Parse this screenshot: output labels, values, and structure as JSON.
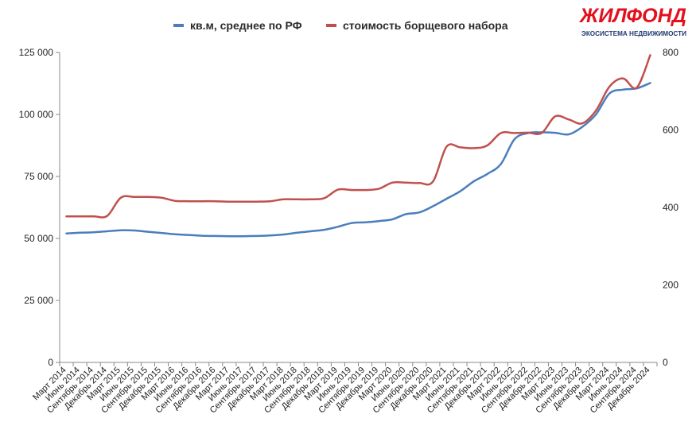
{
  "brand": {
    "name": "ЖИЛФОНД",
    "tagline": "ЭКОСИСТЕМА НЕДВИЖИМОСТИ"
  },
  "chart_data": {
    "type": "line",
    "title": "",
    "legend_position": "top-center",
    "grid": false,
    "categories": [
      "Март 2014",
      "Июнь 2014",
      "Сентябрь 2014",
      "Декабрь 2014",
      "Март 2015",
      "Июнь 2015",
      "Сентябрь 2015",
      "Декабрь 2015",
      "Март 2016",
      "Июнь 2016",
      "Сентябрь 2016",
      "Декабрь 2016",
      "Март 2017",
      "Июнь 2017",
      "Сентябрь 2017",
      "Декабрь 2017",
      "Март 2018",
      "Июнь 2018",
      "Сентябрь 2018",
      "Декабрь 2018",
      "Март 2019",
      "Июнь 2019",
      "Сентябрь 2019",
      "Декабрь 2019",
      "Март 2020",
      "Июнь 2020",
      "Сентябрь 2020",
      "Декабрь 2020",
      "Март 2021",
      "Июнь 2021",
      "Сентябрь 2021",
      "Декабрь 2021",
      "Март 2022",
      "Июнь 2022",
      "Сентябрь 2022",
      "Декабрь 2022",
      "Март 2023",
      "Июнь 2023",
      "Сентябрь 2023",
      "Декабрь 2023",
      "Март 2024",
      "Июнь 2024",
      "Сентябрь 2024",
      "Декабрь 2024"
    ],
    "y_left": {
      "ticks": [
        "0",
        "25 000",
        "50 000",
        "75 000",
        "100 000",
        "125 000"
      ],
      "min": 0,
      "max": 125000
    },
    "y_right": {
      "ticks": [
        "0",
        "200",
        "400",
        "600",
        "800"
      ],
      "min": 0,
      "max": 800
    },
    "series": [
      {
        "name": "кв.м, среднее по РФ",
        "axis": "left",
        "color": "#4a7ebb",
        "values": [
          52000,
          52300,
          52500,
          52900,
          53300,
          53200,
          52700,
          52200,
          51700,
          51400,
          51100,
          51000,
          50900,
          50900,
          51000,
          51200,
          51600,
          52300,
          52900,
          53500,
          54700,
          56200,
          56500,
          57000,
          57700,
          59800,
          60500,
          63000,
          66000,
          69000,
          73000,
          76000,
          80000,
          90000,
          92500,
          92800,
          92600,
          92000,
          95000,
          100000,
          108500,
          110000,
          110500,
          112700
        ]
      },
      {
        "name": "стоимость борщевого набора",
        "axis": "right",
        "color": "#c0504d",
        "values": [
          377,
          377,
          377,
          378,
          425,
          427,
          427,
          425,
          417,
          416,
          416,
          416,
          415,
          415,
          415,
          416,
          421,
          421,
          421,
          424,
          446,
          445,
          445,
          448,
          464,
          464,
          463,
          467,
          557,
          555,
          553,
          560,
          592,
          592,
          593,
          592,
          635,
          627,
          617,
          650,
          712,
          733,
          709,
          793
        ]
      }
    ]
  }
}
